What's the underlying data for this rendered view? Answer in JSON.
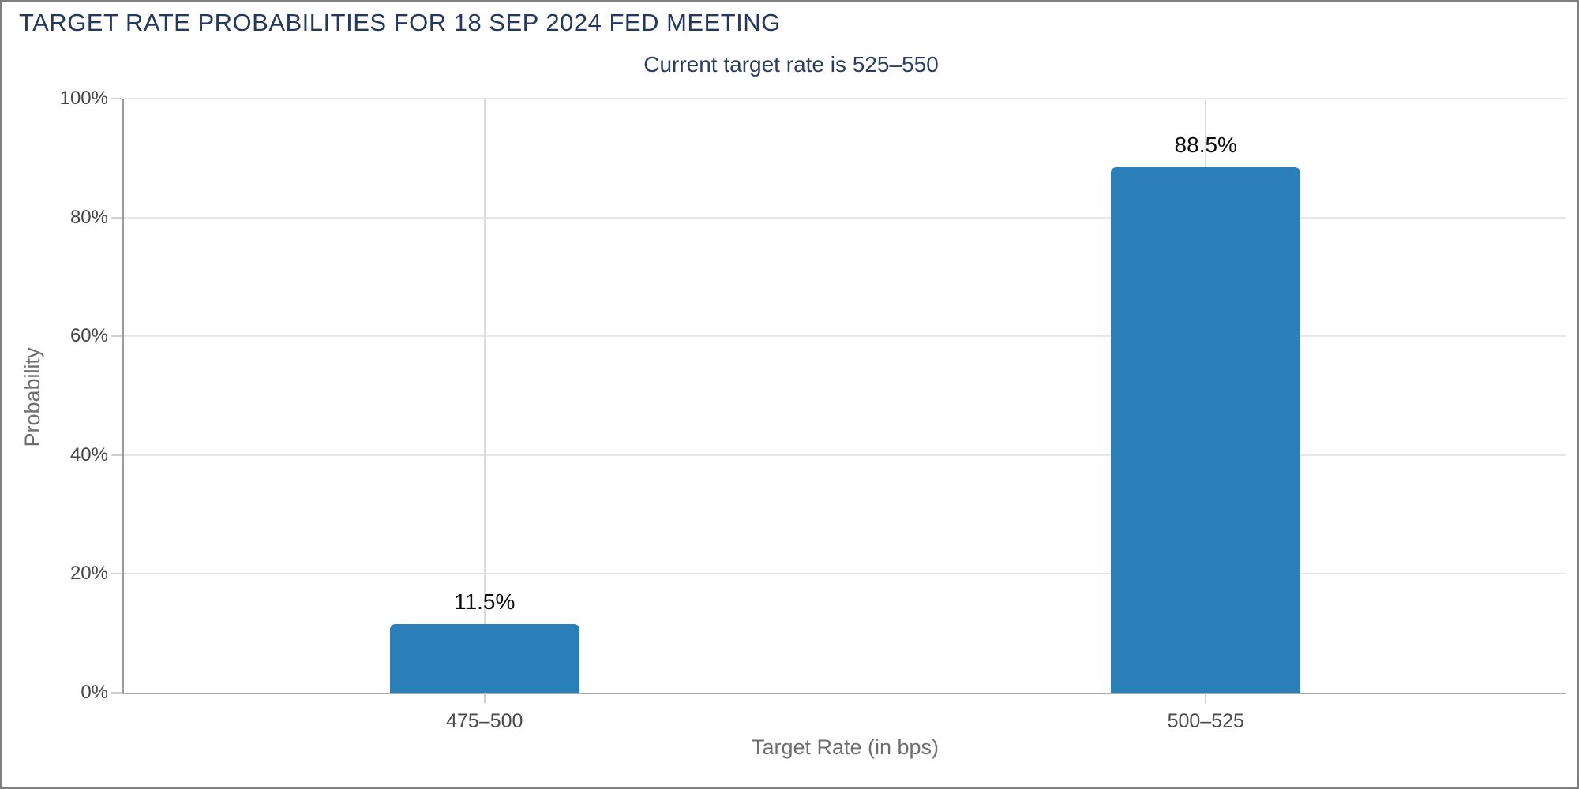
{
  "page": {
    "title": "TARGET RATE PROBABILITIES FOR 18 SEP 2024 FED MEETING",
    "subtitle": "Current target rate is 525–550"
  },
  "colors": {
    "bar": "#2a7fb8",
    "title_text": "#24375c",
    "grid": "#e6e6e6",
    "axis_line": "#9c9c9c"
  },
  "chart_data": {
    "type": "bar",
    "title": "TARGET RATE PROBABILITIES FOR 18 SEP 2024 FED MEETING",
    "subtitle": "Current target rate is 525–550",
    "categories": [
      "475–500",
      "500–525"
    ],
    "values": [
      11.5,
      88.5
    ],
    "value_labels": [
      "11.5%",
      "88.5%"
    ],
    "xlabel": "Target Rate (in bps)",
    "ylabel": "Probability",
    "ylim": [
      0,
      100
    ],
    "yticks": [
      0,
      20,
      40,
      60,
      80,
      100
    ],
    "ytick_labels": [
      "0%",
      "20%",
      "40%",
      "60%",
      "80%",
      "100%"
    ],
    "grid": true,
    "legend": false,
    "bar_color": "#2a7fb8"
  }
}
